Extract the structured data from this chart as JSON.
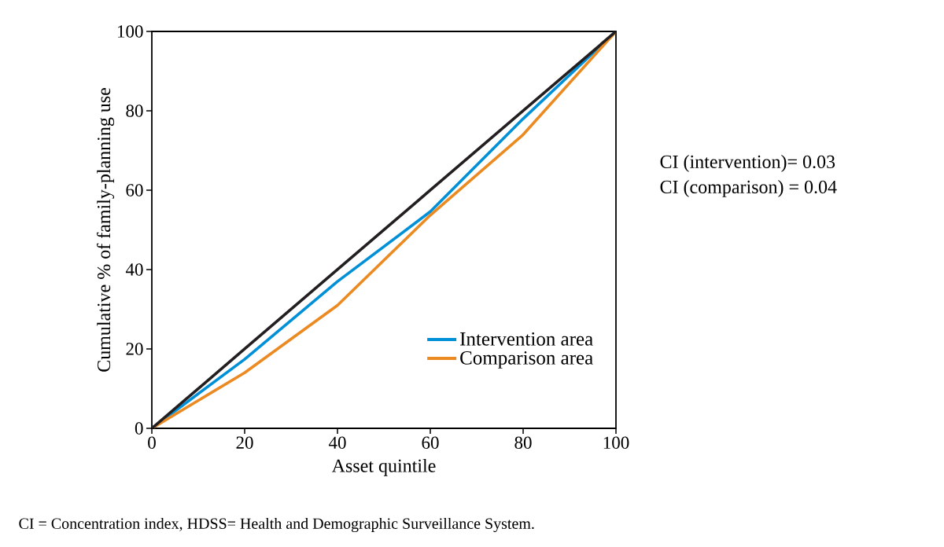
{
  "chart_data": {
    "type": "line",
    "xlabel": "Asset quintile",
    "ylabel": "Cumulative % of family-planning use",
    "x": [
      0,
      20,
      40,
      60,
      80,
      100
    ],
    "series": [
      {
        "name": "Intervention area",
        "color": "#0090d8",
        "values": [
          0,
          17.4,
          37,
          54.6,
          78,
          100
        ]
      },
      {
        "name": "Comparison area",
        "color": "#ec8a22",
        "values": [
          0,
          14,
          31,
          53.7,
          74,
          100
        ]
      },
      {
        "color": "#231f20",
        "values": [
          0,
          20,
          40,
          60,
          80,
          100
        ]
      }
    ],
    "xlim": [
      0,
      100
    ],
    "ylim": [
      0,
      100
    ],
    "xticks": [
      0,
      20,
      40,
      60,
      80,
      100
    ],
    "yticks": [
      0,
      20,
      40,
      60,
      80,
      100
    ],
    "legend": "bottom right",
    "grid": false,
    "marker": "none",
    "line_style": "solid",
    "annotations": [
      "CI (intervention)= 0.03",
      "CI (comparison) = 0.04",
      "CI =  Concentration index, HDSS= Health and Demographic Surveillance System."
    ]
  }
}
